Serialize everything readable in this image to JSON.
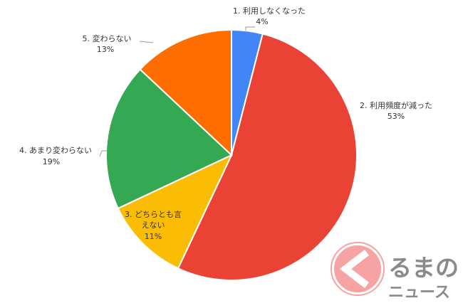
{
  "chart_data": {
    "type": "pie",
    "start": "top",
    "direction": "clockwise",
    "slices": [
      {
        "label": "1. 利用しなくなった",
        "value": 4,
        "pct_label": "4%",
        "color": "#4285f4"
      },
      {
        "label": "2. 利用頻度が減った",
        "value": 53,
        "pct_label": "53%",
        "color": "#ea4335"
      },
      {
        "label_lines": [
          "3. どちらとも言",
          "えない"
        ],
        "value": 11,
        "pct_label": "11%",
        "color": "#fbbc04"
      },
      {
        "label": "4. あまり変わらない",
        "value": 19,
        "pct_label": "19%",
        "color": "#34a853"
      },
      {
        "label": "5. 変わらない",
        "value": 13,
        "pct_label": "13%",
        "color": "#ff6d01"
      }
    ]
  },
  "logo": {
    "text_line1": "るまの",
    "text_line2": "ニュース",
    "mark": "く",
    "color": "#f6a0a0",
    "text_color": "#8a8a8a"
  }
}
